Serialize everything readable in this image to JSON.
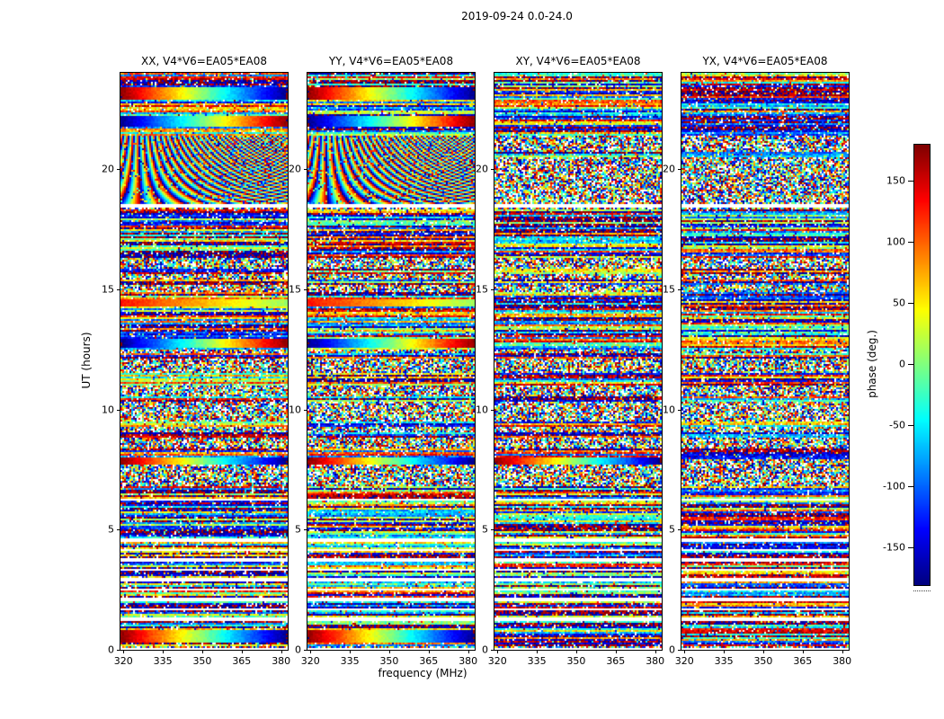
{
  "chart_data": {
    "type": "heatmap",
    "title": "2019-09-24 0.0-24.0",
    "xlabel": "frequency (MHz)",
    "ylabel": "UT (hours)",
    "x_range": [
      318.9,
      382.5
    ],
    "x_ticks": [
      320,
      335,
      350,
      365,
      380
    ],
    "y_range": [
      0,
      24
    ],
    "y_ticks": [
      0,
      5,
      10,
      15,
      20
    ],
    "colormap": "jet",
    "colorbar": {
      "label": "phase (deg.)",
      "ticks": [
        150,
        100,
        50,
        0,
        -50,
        -100,
        -150
      ],
      "range": [
        -180,
        180
      ]
    },
    "panels": [
      {
        "pol": "XX",
        "title": "XX, V4*V6=EA05*EA08"
      },
      {
        "pol": "YY",
        "title": "YY, V4*V6=EA05*EA08"
      },
      {
        "pol": "XY",
        "title": "XY, V4*V6=EA05*EA08"
      },
      {
        "pol": "YX",
        "title": "YX, V4*V6=EA05*EA08"
      }
    ],
    "content_note": "Interferometric visibility phase vs frequency (318.9-382.5 MHz) and UT time (0-24 h) for baseline V4*V6=EA05*EA08; mostly pseudo-random phase noise with flagged (white) time ranges, time-coherent striped bands, smooth frequency-gradient bands and chirped fringe patterns as listed in features.",
    "noise_seed": 42,
    "features": {
      "white_gaps_t": [
        [
          0.0,
          0.1
        ],
        [
          1.23,
          1.33
        ],
        [
          1.64,
          1.74
        ],
        [
          2.05,
          2.15
        ],
        [
          2.46,
          2.56
        ],
        [
          2.87,
          2.97
        ],
        [
          3.28,
          3.38
        ],
        [
          3.69,
          3.79
        ],
        [
          4.1,
          4.2
        ],
        [
          4.51,
          4.61
        ],
        [
          6.2,
          6.3
        ],
        [
          18.42,
          18.52
        ]
      ],
      "coherent_bands_t": [
        [
          0.12,
          6.2
        ],
        [
          6.3,
          6.55
        ],
        [
          9.25,
          9.5
        ],
        [
          11.15,
          11.55
        ],
        [
          12.45,
          13.05
        ],
        [
          13.35,
          14.9
        ],
        [
          16.5,
          18.35
        ],
        [
          21.4,
          24.0
        ]
      ],
      "smooth_gradient_bands": [
        {
          "panels": [
            0,
            1
          ],
          "t": [
            22.9,
            23.4
          ],
          "dir": 1
        },
        {
          "panels": [
            0,
            1
          ],
          "t": [
            21.75,
            22.2
          ],
          "dir": -1
        },
        {
          "panels": [
            0,
            1
          ],
          "t": [
            14.3,
            14.55
          ],
          "dir": 2
        },
        {
          "panels": [
            0,
            1
          ],
          "t": [
            12.55,
            12.95
          ],
          "dir": -1
        },
        {
          "panels": [
            0,
            1,
            2
          ],
          "t": [
            7.7,
            8.0
          ],
          "dir": 1
        },
        {
          "panels": [
            0,
            1
          ],
          "t": [
            0.3,
            0.8
          ],
          "dir": 1
        }
      ],
      "fringe_bands": [
        {
          "panels": [
            0,
            1
          ],
          "t": [
            18.52,
            21.4
          ]
        }
      ]
    }
  }
}
